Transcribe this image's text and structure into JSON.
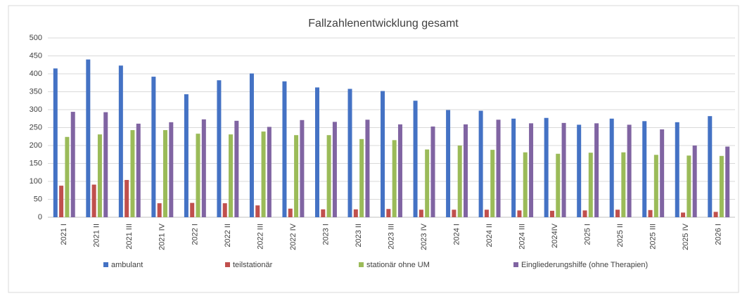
{
  "chart_data": {
    "type": "bar",
    "title": "Fallzahlenentwicklung gesamt",
    "categories": [
      "2021 I",
      "2021 II",
      "2021 III",
      "2021 IV",
      "2022 I",
      "2022 II",
      "2022 III",
      "2022 IV",
      "2023 I",
      "2023 II",
      "2023 III",
      "2023 IV",
      "2024 I",
      "2024 II",
      "2024 III",
      "2024IV",
      "2025 I",
      "2025 II",
      "2025 III",
      "2025 IV",
      "2026 I"
    ],
    "series": [
      {
        "name": "ambulant",
        "color": "#4472c4",
        "values": [
          415,
          440,
          423,
          392,
          343,
          382,
          401,
          379,
          362,
          358,
          352,
          325,
          299,
          297,
          275,
          277,
          258,
          275,
          268,
          265,
          282
        ]
      },
      {
        "name": "teilstationär",
        "color": "#c0504d",
        "values": [
          88,
          91,
          104,
          39,
          40,
          39,
          33,
          24,
          22,
          22,
          23,
          21,
          21,
          21,
          19,
          18,
          19,
          21,
          20,
          13,
          15
        ]
      },
      {
        "name": "stationär ohne UM",
        "color": "#9bbb59",
        "values": [
          224,
          231,
          243,
          243,
          233,
          231,
          239,
          229,
          229,
          218,
          215,
          189,
          200,
          188,
          181,
          177,
          180,
          181,
          174,
          172,
          171
        ]
      },
      {
        "name": "Eingliederungshilfe (ohne Therapien)",
        "color": "#8064a2",
        "values": [
          294,
          293,
          261,
          265,
          273,
          269,
          252,
          271,
          266,
          272,
          259,
          253,
          259,
          272,
          262,
          263,
          262,
          258,
          245,
          200,
          197
        ]
      }
    ],
    "ylim": [
      0,
      500
    ],
    "yticks": [
      0,
      50,
      100,
      150,
      200,
      250,
      300,
      350,
      400,
      450,
      500
    ],
    "grid": true,
    "legend": "bottom"
  }
}
